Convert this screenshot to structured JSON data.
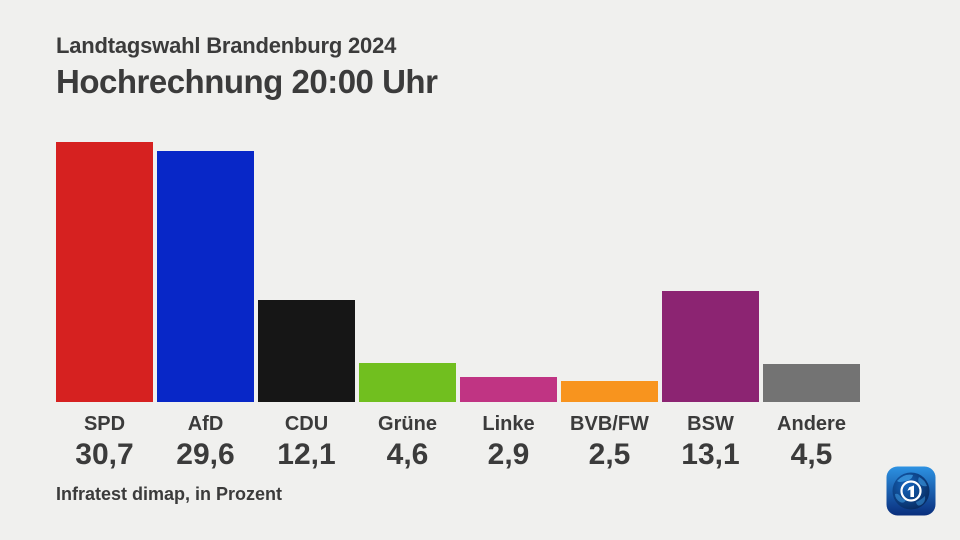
{
  "header": {
    "subtitle": "Landtagswahl Brandenburg 2024",
    "title": "Hochrechnung 20:00 Uhr"
  },
  "chart_data": {
    "type": "bar",
    "categories": [
      "SPD",
      "AfD",
      "CDU",
      "Grüne",
      "Linke",
      "BVB/FW",
      "BSW",
      "Andere"
    ],
    "values": [
      30.7,
      29.6,
      12.1,
      4.6,
      2.9,
      2.5,
      13.1,
      4.5
    ],
    "value_labels": [
      "30,7",
      "29,6",
      "12,1",
      "4,6",
      "2,9",
      "2,5",
      "13,1",
      "4,5"
    ],
    "colors": [
      "#d62120",
      "#0827c7",
      "#161616",
      "#71bf1f",
      "#c03483",
      "#f8941e",
      "#8c2472",
      "#737373"
    ],
    "title": "Hochrechnung 20:00 Uhr",
    "subtitle": "Landtagswahl Brandenburg 2024",
    "xlabel": "",
    "ylabel": "",
    "ylim": [
      0,
      30.7
    ],
    "grid": false,
    "legend": false,
    "unit": "Prozent",
    "source": "Infratest dimap, in Prozent"
  },
  "footer": {
    "source": "Infratest dimap, in Prozent"
  },
  "logo": {
    "icon": "tagesschau-globe-icon"
  },
  "colors": {
    "background": "#f0f0ee",
    "text": "#3b3b3b"
  }
}
